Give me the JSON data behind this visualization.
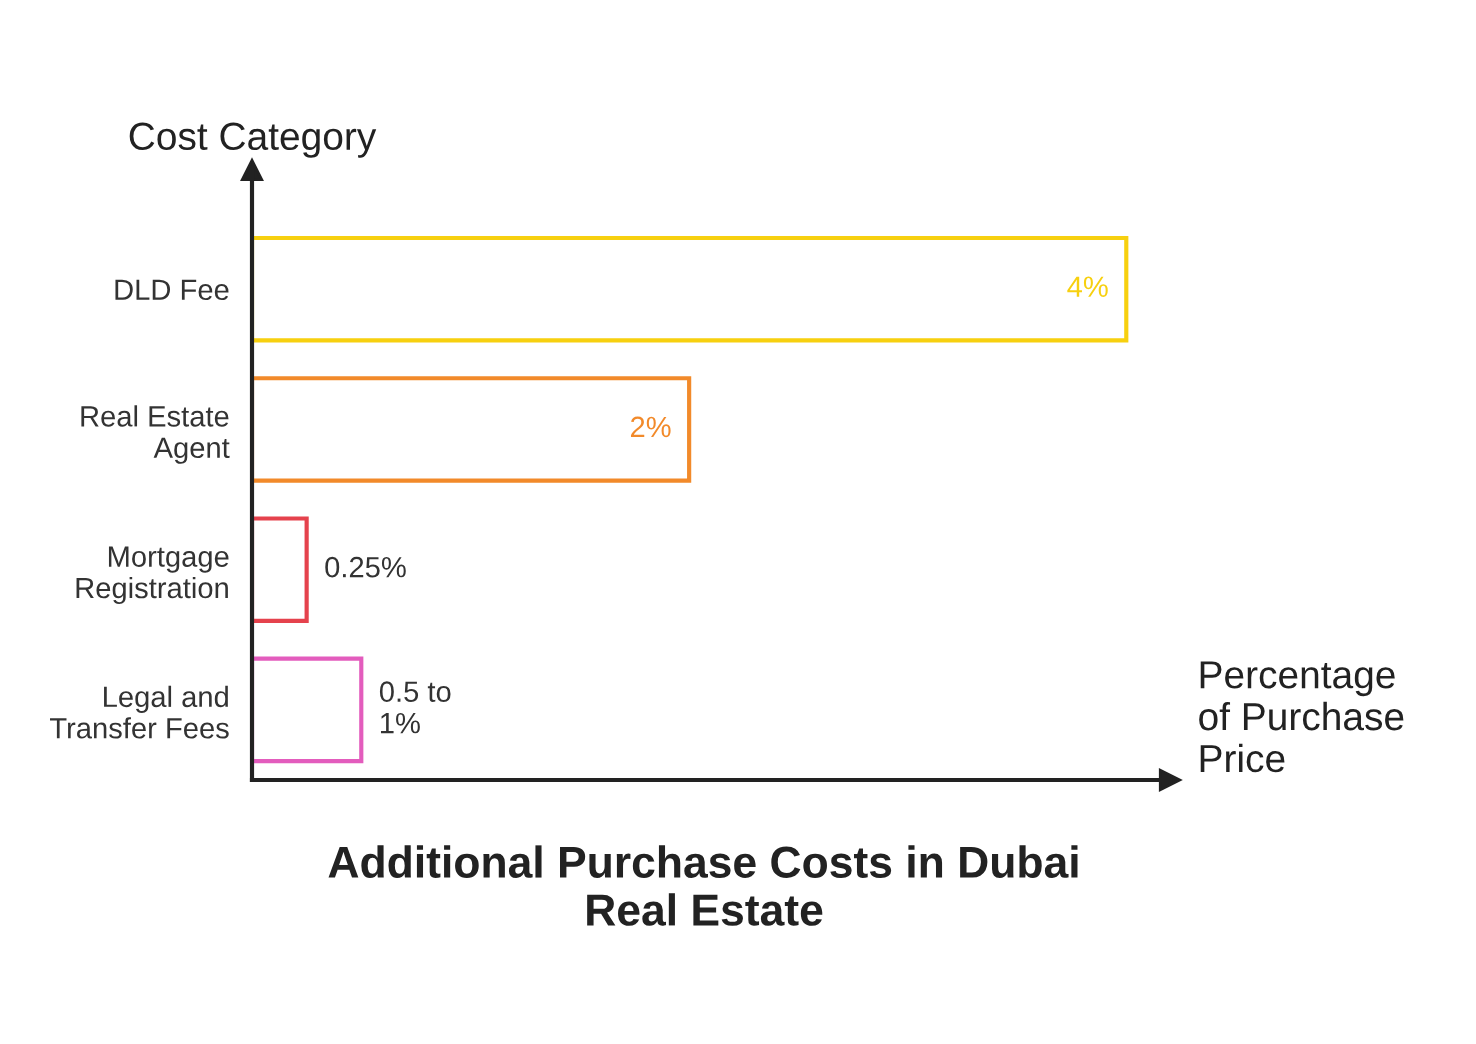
{
  "chart_data": {
    "type": "bar",
    "orientation": "horizontal",
    "title": "Additional Purchase Costs in Dubai\nReal Estate",
    "xlabel": "Percentage\nof Purchase\nPrice",
    "ylabel": "Cost Category",
    "categories": [
      "DLD Fee",
      "Real Estate\nAgent",
      "Mortgage\nRegistration",
      "Legal and\nTransfer Fees"
    ],
    "values": [
      4,
      2,
      0.25,
      0.5
    ],
    "colors": [
      "#f7d00f",
      "#f28a2a",
      "#e5424d",
      "#e35cbd"
    ],
    "value_labels": [
      "4%",
      "2%",
      "0.25%",
      "0.5 to\n1%"
    ],
    "grid": false,
    "legend": false
  }
}
